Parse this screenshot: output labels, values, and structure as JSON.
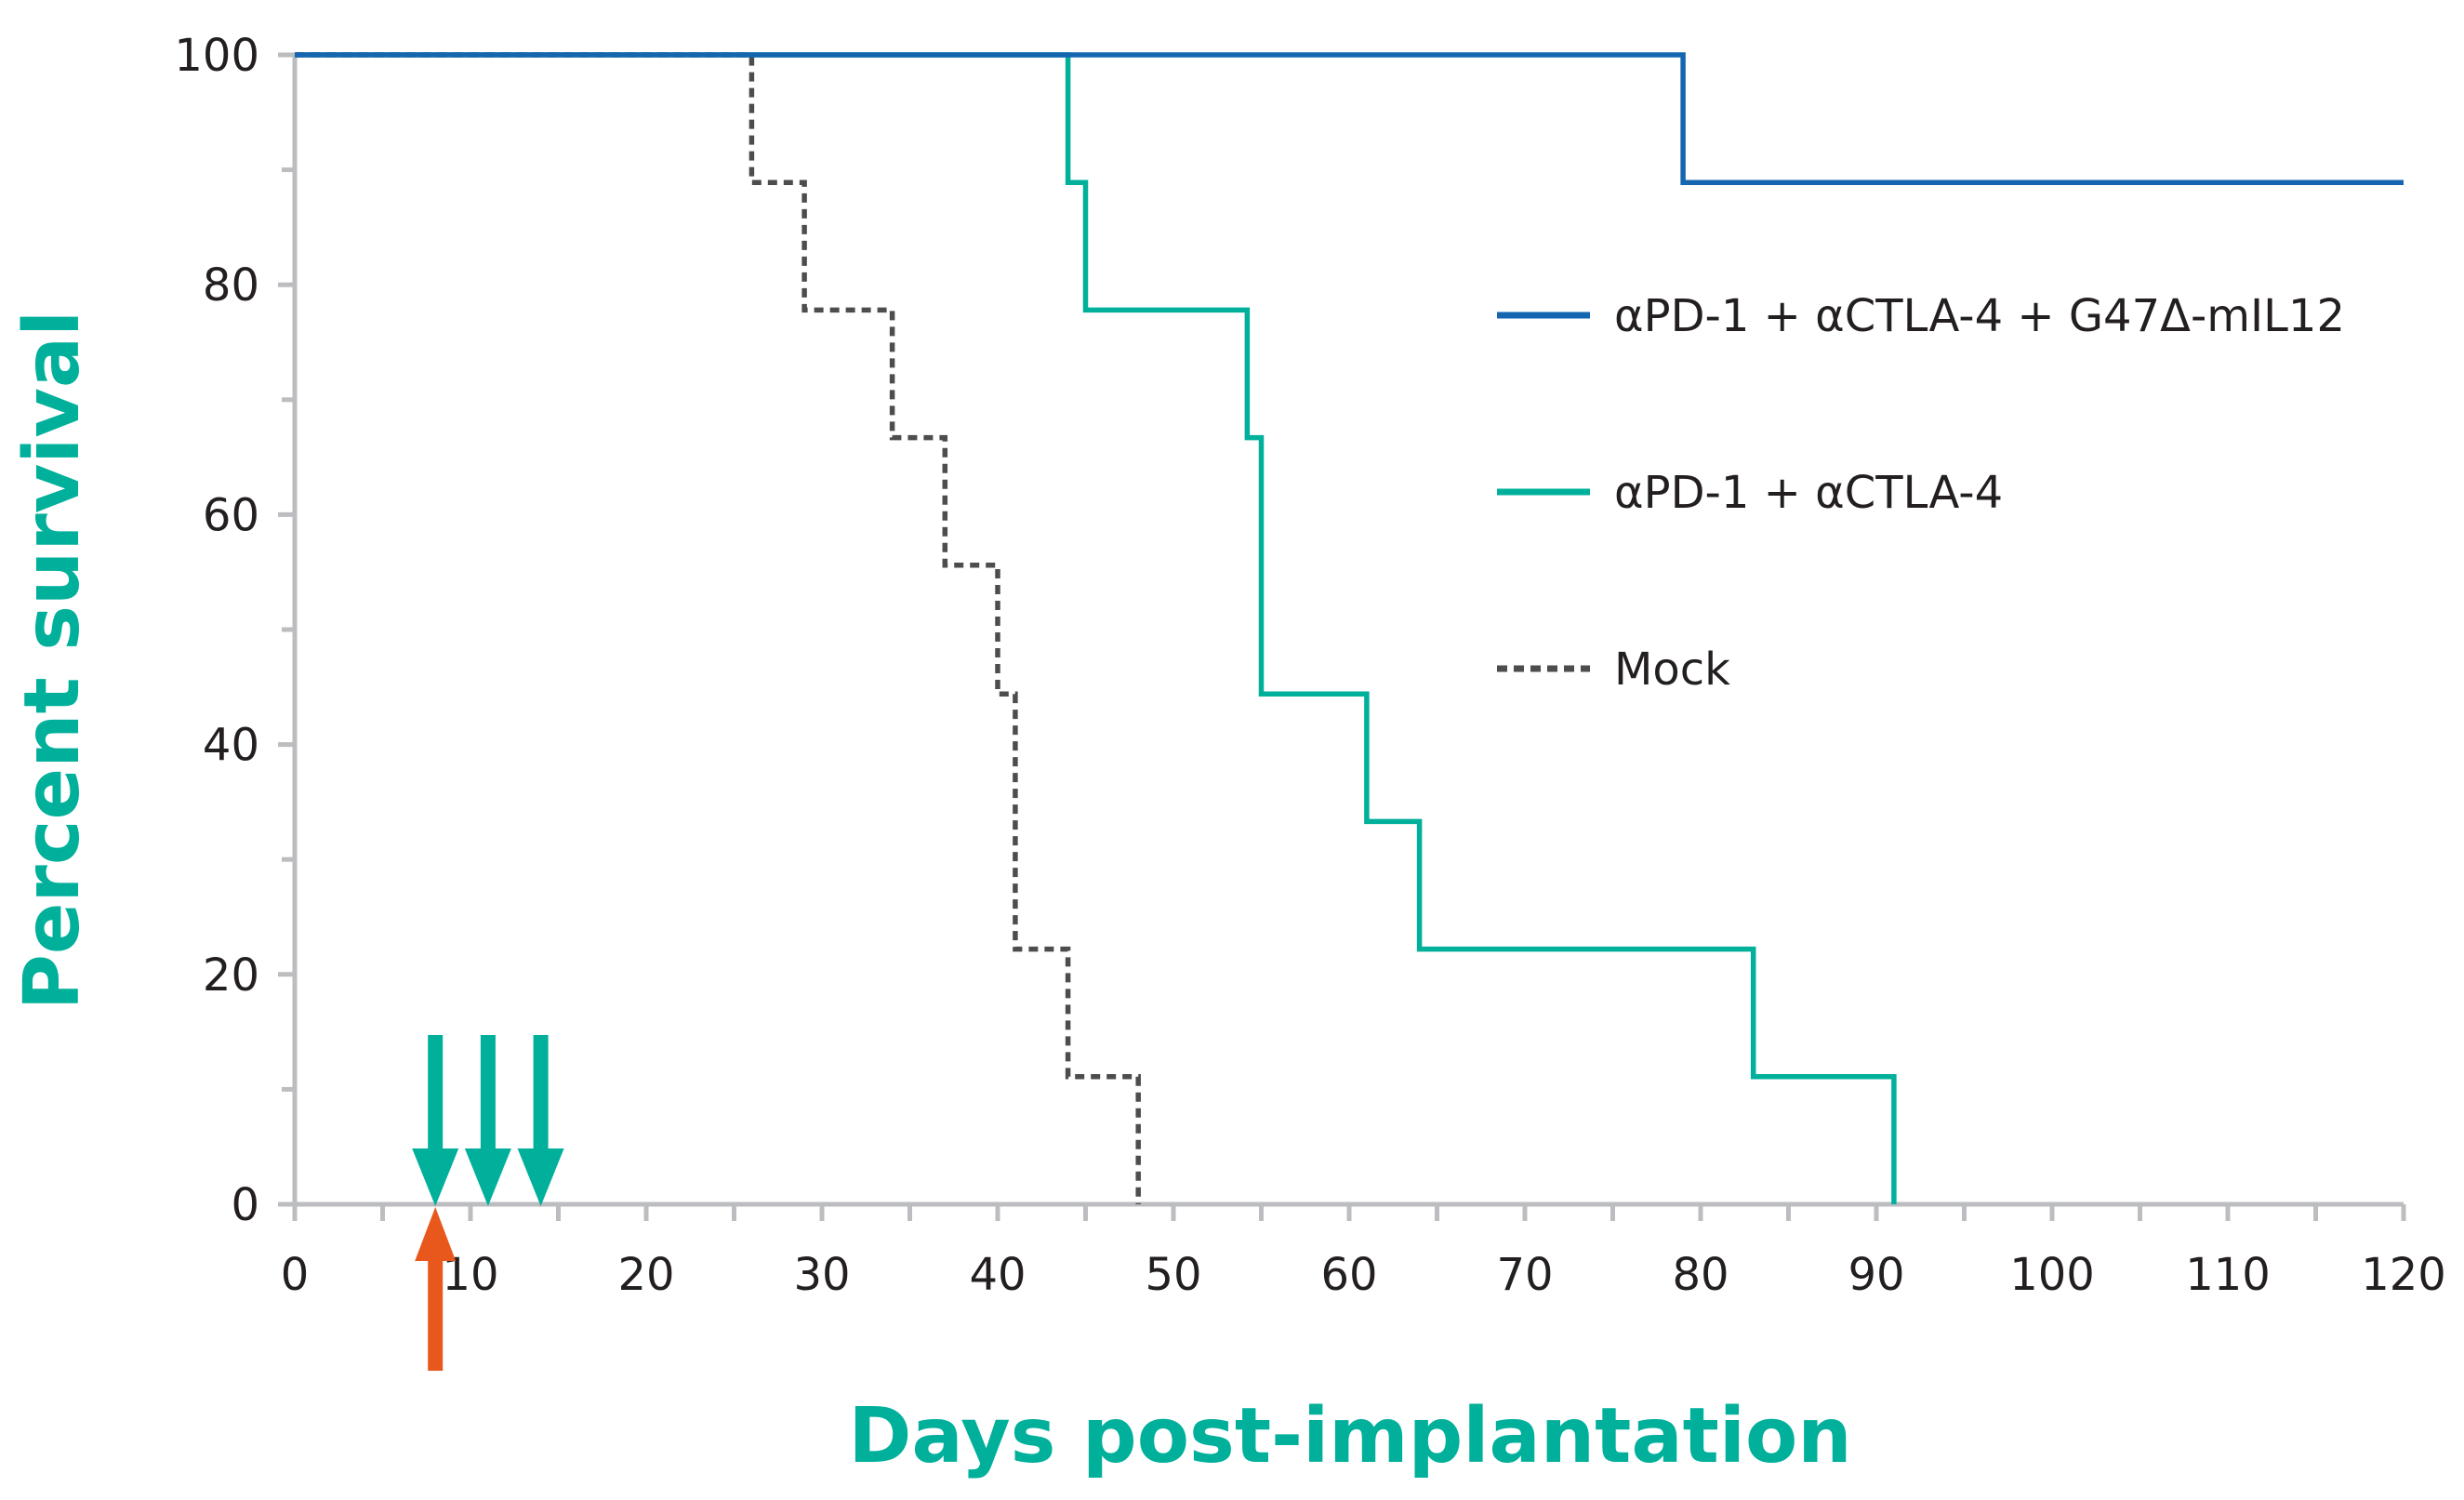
{
  "chart_data": {
    "type": "line",
    "subtype": "kaplan-meier-step",
    "xlabel": "Days post-implantation",
    "ylabel": "Percent survival",
    "xlim": [
      0,
      120
    ],
    "ylim": [
      0,
      100
    ],
    "x_ticks": [
      0,
      10,
      20,
      30,
      40,
      50,
      60,
      70,
      80,
      90,
      100,
      110,
      120
    ],
    "x_tick_labels": [
      "0",
      "10",
      "20",
      "30",
      "40",
      "50",
      "60",
      "70",
      "80",
      "90",
      "100",
      "110",
      "120"
    ],
    "y_ticks": [
      0,
      20,
      40,
      60,
      80,
      100
    ],
    "y_tick_labels": [
      "0",
      "20",
      "40",
      "60",
      "80",
      "100"
    ],
    "y_minor_ticks": [
      10,
      30,
      50,
      70,
      90
    ],
    "grid": false,
    "legend_position": "right",
    "axis_title_color": "#00b09b",
    "axis_color": "#bcbdc0",
    "series": [
      {
        "name": "αPD-1 + αCTLA-4 + G47Δ-mIL12",
        "color": "#1466b0",
        "style": "solid",
        "steps": [
          [
            0,
            100
          ],
          [
            79,
            88.9
          ],
          [
            120,
            88.9
          ]
        ]
      },
      {
        "name": "αPD-1 + αCTLA-4",
        "color": "#00b09b",
        "style": "solid",
        "steps": [
          [
            0,
            100
          ],
          [
            44,
            88.9
          ],
          [
            45,
            77.8
          ],
          [
            54.2,
            66.7
          ],
          [
            55,
            44.4
          ],
          [
            61,
            33.3
          ],
          [
            64,
            22.2
          ],
          [
            83,
            11.1
          ],
          [
            91,
            0
          ]
        ]
      },
      {
        "name": "Mock",
        "color": "#4d4d4f",
        "style": "dotted",
        "steps": [
          [
            0,
            100
          ],
          [
            26,
            88.9
          ],
          [
            29,
            77.8
          ],
          [
            34,
            66.7
          ],
          [
            37,
            55.6
          ],
          [
            40,
            44.4
          ],
          [
            41,
            22.2
          ],
          [
            44,
            11.1
          ],
          [
            48,
            0
          ]
        ]
      }
    ],
    "annotations": {
      "treatment_arrows": {
        "color": "#00b09b",
        "days": [
          8,
          11,
          14
        ],
        "direction": "down"
      },
      "implant_arrow": {
        "color": "#e8581c",
        "day": 8,
        "direction": "up"
      }
    }
  }
}
